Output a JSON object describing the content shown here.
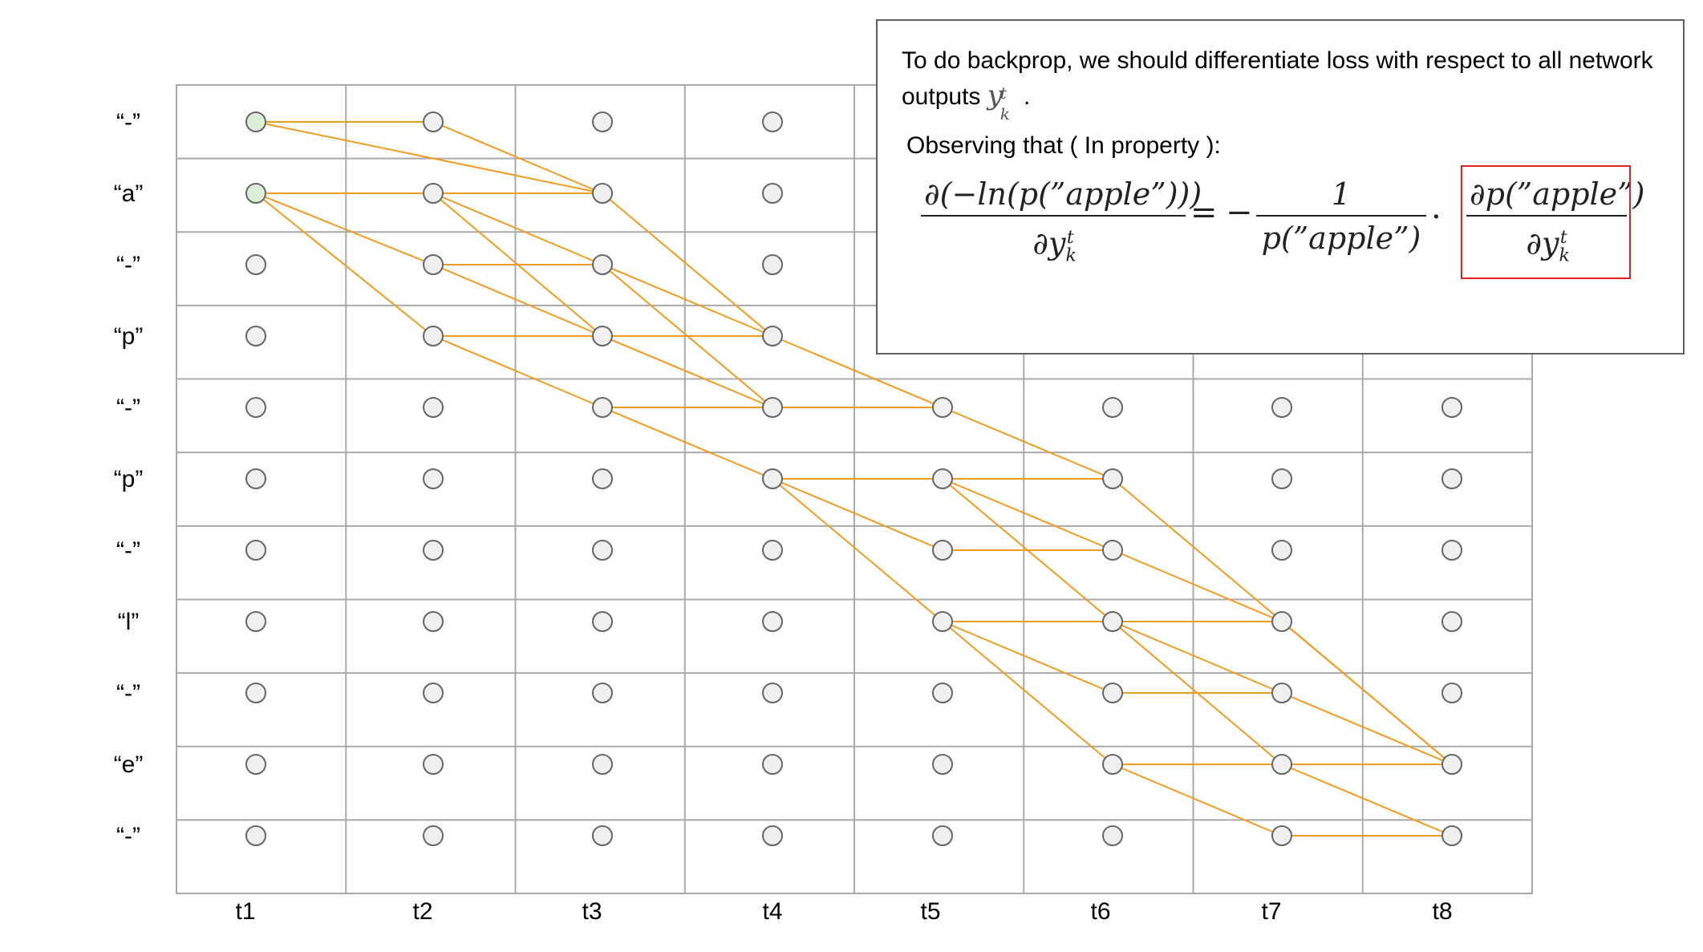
{
  "lattice": {
    "row_labels": [
      "“-”",
      "“a”",
      "“-”",
      "“p”",
      "“-”",
      "“p”",
      "“-”",
      "“l”",
      "“-”",
      "“e”",
      "“-”"
    ],
    "time_labels": [
      "t1",
      "t2",
      "t3",
      "t4",
      "t5",
      "t6",
      "t7",
      "t8"
    ],
    "start_nodes": [
      [
        0,
        0
      ],
      [
        0,
        1
      ]
    ],
    "edges": [
      [
        [
          0,
          0
        ],
        [
          1,
          0
        ]
      ],
      [
        [
          0,
          0
        ],
        [
          2,
          1
        ]
      ],
      [
        [
          1,
          0
        ],
        [
          2,
          1
        ]
      ],
      [
        [
          0,
          1
        ],
        [
          1,
          1
        ]
      ],
      [
        [
          0,
          1
        ],
        [
          1,
          2
        ]
      ],
      [
        [
          0,
          1
        ],
        [
          1,
          3
        ]
      ],
      [
        [
          1,
          1
        ],
        [
          2,
          1
        ]
      ],
      [
        [
          1,
          1
        ],
        [
          2,
          2
        ]
      ],
      [
        [
          1,
          1
        ],
        [
          2,
          3
        ]
      ],
      [
        [
          1,
          2
        ],
        [
          2,
          2
        ]
      ],
      [
        [
          1,
          2
        ],
        [
          2,
          3
        ]
      ],
      [
        [
          1,
          3
        ],
        [
          2,
          3
        ]
      ],
      [
        [
          1,
          3
        ],
        [
          2,
          4
        ]
      ],
      [
        [
          2,
          1
        ],
        [
          3,
          3
        ]
      ],
      [
        [
          2,
          2
        ],
        [
          3,
          3
        ]
      ],
      [
        [
          2,
          2
        ],
        [
          3,
          4
        ]
      ],
      [
        [
          2,
          3
        ],
        [
          3,
          3
        ]
      ],
      [
        [
          2,
          3
        ],
        [
          3,
          4
        ]
      ],
      [
        [
          2,
          4
        ],
        [
          3,
          4
        ]
      ],
      [
        [
          2,
          4
        ],
        [
          3,
          5
        ]
      ],
      [
        [
          3,
          3
        ],
        [
          5,
          5
        ]
      ],
      [
        [
          3,
          4
        ],
        [
          4,
          4
        ]
      ],
      [
        [
          3,
          5
        ],
        [
          4,
          5
        ]
      ],
      [
        [
          3,
          5
        ],
        [
          4,
          6
        ]
      ],
      [
        [
          3,
          5
        ],
        [
          4,
          7
        ]
      ],
      [
        [
          3,
          5
        ],
        [
          5,
          5
        ]
      ],
      [
        [
          4,
          5
        ],
        [
          5,
          6
        ]
      ],
      [
        [
          4,
          5
        ],
        [
          5,
          7
        ]
      ],
      [
        [
          4,
          6
        ],
        [
          5,
          6
        ]
      ],
      [
        [
          4,
          7
        ],
        [
          5,
          7
        ]
      ],
      [
        [
          4,
          7
        ],
        [
          5,
          8
        ]
      ],
      [
        [
          4,
          7
        ],
        [
          5,
          9
        ]
      ],
      [
        [
          5,
          5
        ],
        [
          7,
          9
        ]
      ],
      [
        [
          5,
          6
        ],
        [
          6,
          7
        ]
      ],
      [
        [
          5,
          7
        ],
        [
          6,
          7
        ]
      ],
      [
        [
          5,
          7
        ],
        [
          6,
          8
        ]
      ],
      [
        [
          5,
          7
        ],
        [
          6,
          9
        ]
      ],
      [
        [
          5,
          8
        ],
        [
          6,
          8
        ]
      ],
      [
        [
          5,
          9
        ],
        [
          6,
          9
        ]
      ],
      [
        [
          5,
          9
        ],
        [
          6,
          10
        ]
      ],
      [
        [
          6,
          7
        ],
        [
          7,
          9
        ]
      ],
      [
        [
          6,
          8
        ],
        [
          7,
          9
        ]
      ],
      [
        [
          6,
          9
        ],
        [
          7,
          9
        ]
      ],
      [
        [
          6,
          9
        ],
        [
          7,
          10
        ]
      ],
      [
        [
          6,
          10
        ],
        [
          7,
          10
        ]
      ]
    ],
    "colors": {
      "path": "#f29b21",
      "node_fill": "#efefef",
      "node_stroke": "#666666",
      "start_fill": "#dcefd7",
      "grid": "#a9a9a9"
    }
  },
  "note": {
    "line1": "To do  backprop, we should differentiate loss with respect to all network",
    "line2_text": "outputs",
    "var_base": "y",
    "var_sup": "t",
    "var_sub": "k",
    "line2_end": ".",
    "line3": "Observing that ( In property ):",
    "eq_lhs_num": "∂(−ln(p(”apple”)))",
    "eq_lhs_den_d": "∂y",
    "eq_equals": "=",
    "eq_minus": "−",
    "eq_mid_num": "1",
    "eq_mid_den": "p(”apple”)",
    "eq_dot": "·",
    "eq_rhs_num": "∂p(”apple”)",
    "eq_rhs_den_d": "∂y",
    "sup_t": "t",
    "sub_k": "k",
    "highlight_color": "#e0201f"
  }
}
